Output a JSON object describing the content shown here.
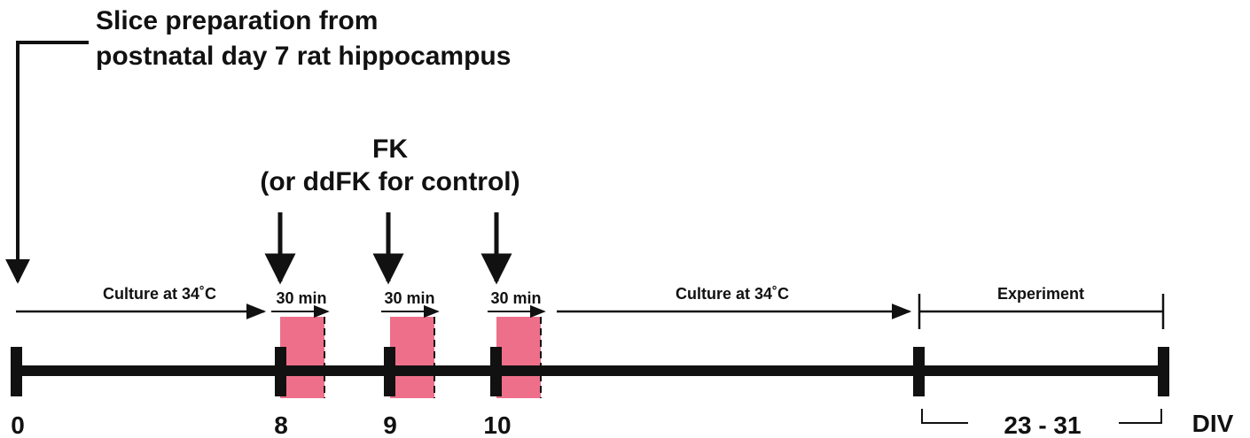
{
  "header": {
    "lines": [
      "Slice preparation from",
      "postnatal day 7 rat hippocampus"
    ]
  },
  "treatment": {
    "title": "FK",
    "subtitle": "(or ddFK for control)"
  },
  "phases": [
    "Culture at 34˚C",
    "Culture at 34˚C"
  ],
  "pulses": [
    "30 min",
    "30 min",
    "30 min"
  ],
  "experiment": "Experiment",
  "days": [
    "0",
    "8",
    "9",
    "10"
  ],
  "range": "23 - 31",
  "unit": "DIV"
}
